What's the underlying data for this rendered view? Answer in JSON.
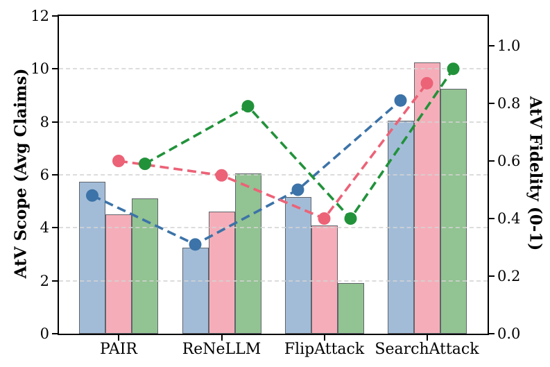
{
  "figure": {
    "background": "#ffffff",
    "title": "",
    "legend": "none"
  },
  "chart_data": {
    "type": "combo (grouped bars on left axis + dashed marker lines on right axis)",
    "categories": [
      "PAIR",
      "ReNeLLM",
      "FlipAttack",
      "SearchAttack"
    ],
    "left_axis": {
      "label": "AtV Scope (Avg Claims)",
      "tick_labels": [
        "0",
        "2",
        "4",
        "6",
        "8",
        "10",
        "12"
      ],
      "tick_values": [
        0,
        2,
        4,
        6,
        8,
        10,
        12
      ],
      "range": [
        0,
        12
      ]
    },
    "right_axis": {
      "label": "AtV Fidelity (0-1)",
      "tick_labels": [
        "0.0",
        "0.2",
        "0.4",
        "0.6",
        "0.8",
        "1.0"
      ],
      "tick_values": [
        0,
        0.2,
        0.4,
        0.6,
        0.8,
        1.0
      ],
      "range": [
        0,
        1.1
      ]
    },
    "bar_series": [
      {
        "name": "blue-bars",
        "axis": "left",
        "color": "#a2bcd8",
        "edge_color": "#5f646a",
        "values": [
          5.75,
          3.25,
          5.15,
          8.05
        ]
      },
      {
        "name": "pink-bars",
        "axis": "left",
        "color": "#f5aeb9",
        "edge_color": "#5f646a",
        "values": [
          4.5,
          4.6,
          4.1,
          10.25
        ]
      },
      {
        "name": "green-bars",
        "axis": "left",
        "color": "#92c392",
        "edge_color": "#5f646a",
        "values": [
          5.1,
          6.05,
          1.9,
          9.25
        ]
      }
    ],
    "line_series": [
      {
        "name": "blue-dashed-line",
        "axis": "right",
        "color": "#3c73a8",
        "marker": "circle",
        "values": [
          0.48,
          0.31,
          0.5,
          0.81
        ]
      },
      {
        "name": "pink-dashed-line",
        "axis": "right",
        "color": "#ec6277",
        "marker": "circle",
        "values": [
          0.6,
          0.55,
          0.4,
          0.87
        ]
      },
      {
        "name": "green-dashed-line",
        "axis": "right",
        "color": "#21923a",
        "marker": "circle",
        "values": [
          0.59,
          0.79,
          0.4,
          0.92
        ]
      }
    ],
    "grid": {
      "horizontal_at_left_ticks": [
        2,
        4,
        6,
        8,
        10
      ],
      "style": "dashed",
      "color": "#d4d4d4"
    }
  }
}
